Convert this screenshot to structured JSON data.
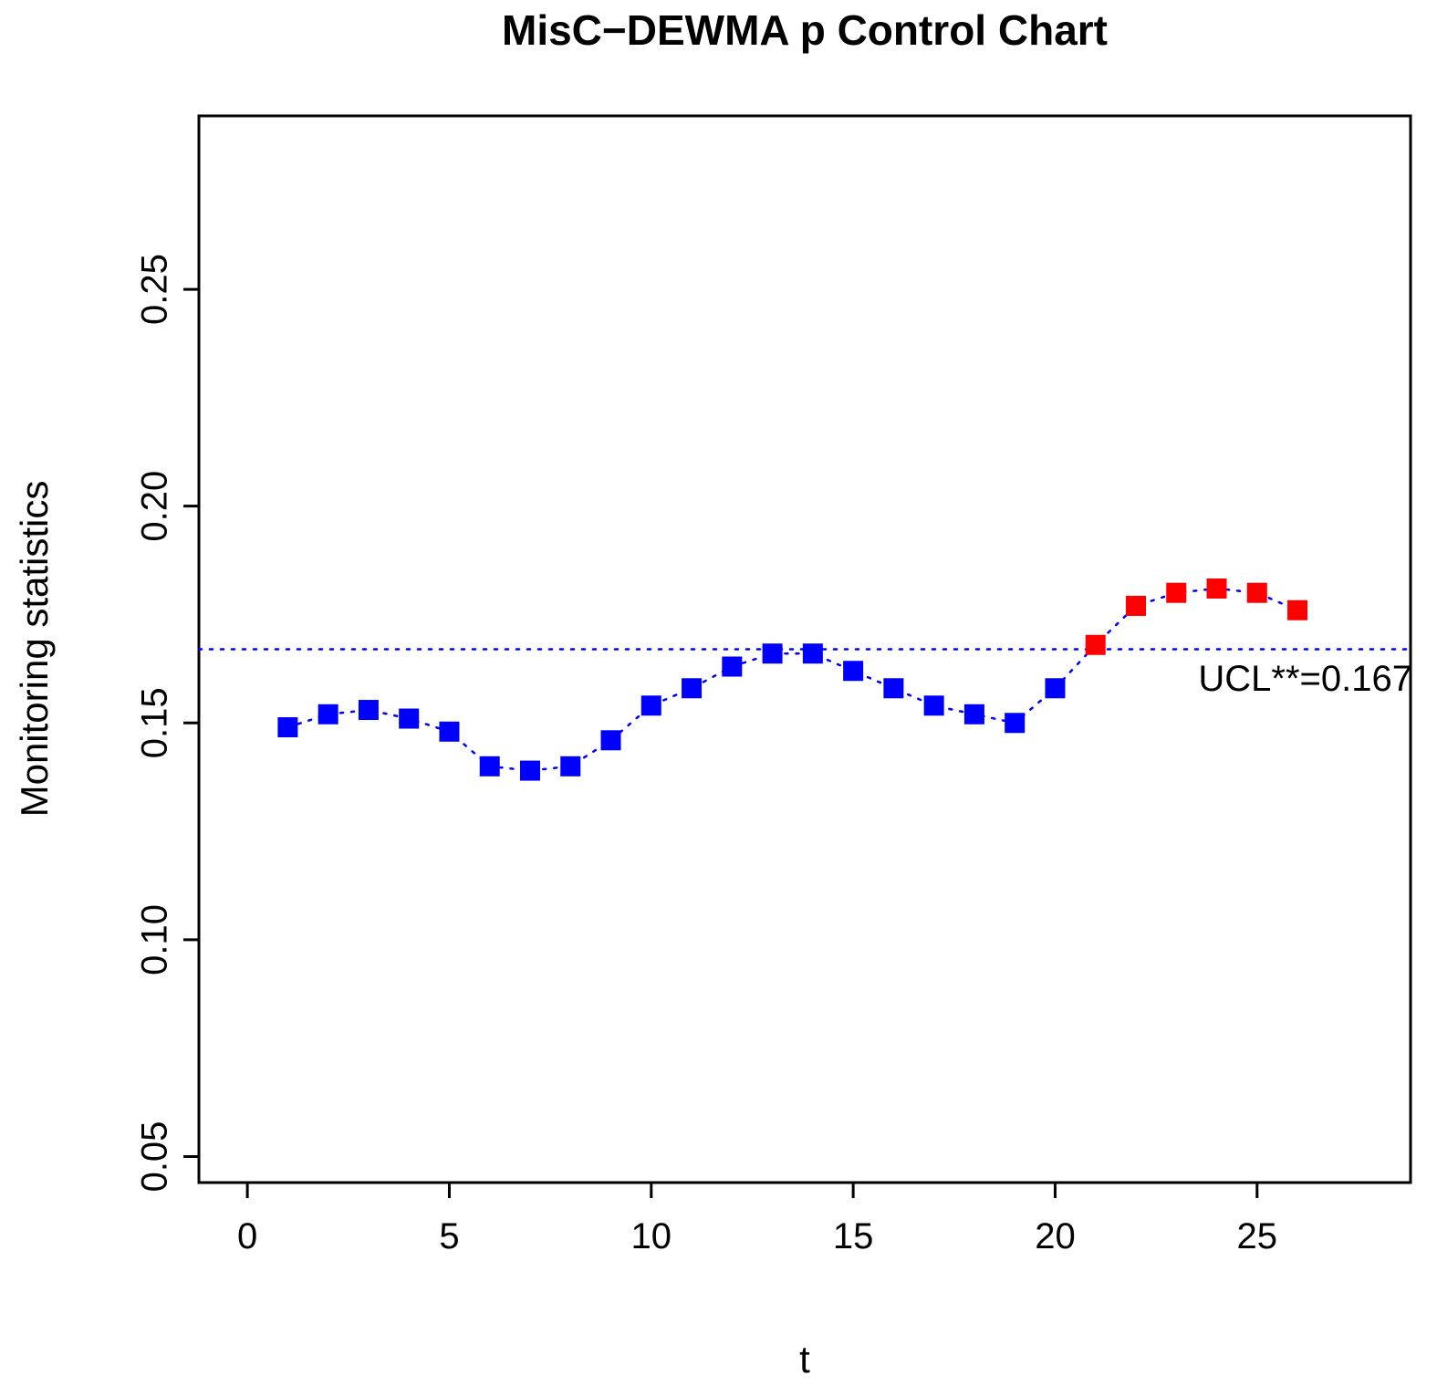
{
  "chart_data": {
    "type": "scatter",
    "title": "MisC−DEWMA p Control Chart",
    "xlabel": "t",
    "ylabel": "Monitoring statistics",
    "x": [
      1,
      2,
      3,
      4,
      5,
      6,
      7,
      8,
      9,
      10,
      11,
      12,
      13,
      14,
      15,
      16,
      17,
      18,
      19,
      20,
      21,
      22,
      23,
      24,
      25,
      26
    ],
    "values": [
      0.149,
      0.152,
      0.153,
      0.151,
      0.148,
      0.14,
      0.139,
      0.14,
      0.146,
      0.154,
      0.158,
      0.163,
      0.166,
      0.166,
      0.162,
      0.158,
      0.154,
      0.152,
      0.15,
      0.158,
      0.168,
      0.177,
      0.18,
      0.181,
      0.18,
      0.176
    ],
    "ucl": 0.167,
    "ucl_label": "UCL**=0.167",
    "marker": "filled-square",
    "line_style": "dotted",
    "grid": false,
    "legend": "none",
    "colors": {
      "in_control": "#0000ff",
      "out_of_control": "#ff0000",
      "series_line": "#0000ff",
      "ucl_line": "#0000ff",
      "axis": "#000000"
    },
    "x_ticks": [
      0,
      5,
      10,
      15,
      20,
      25
    ],
    "x_tick_labels": [
      "0",
      "5",
      "10",
      "15",
      "20",
      "25"
    ],
    "y_ticks": [
      0.05,
      0.1,
      0.15,
      0.2,
      0.25
    ],
    "y_tick_labels": [
      "0.05",
      "0.10",
      "0.15",
      "0.20",
      "0.25"
    ],
    "xlim": [
      -1.2,
      28.8
    ],
    "ylim": [
      0.044,
      0.29
    ]
  }
}
